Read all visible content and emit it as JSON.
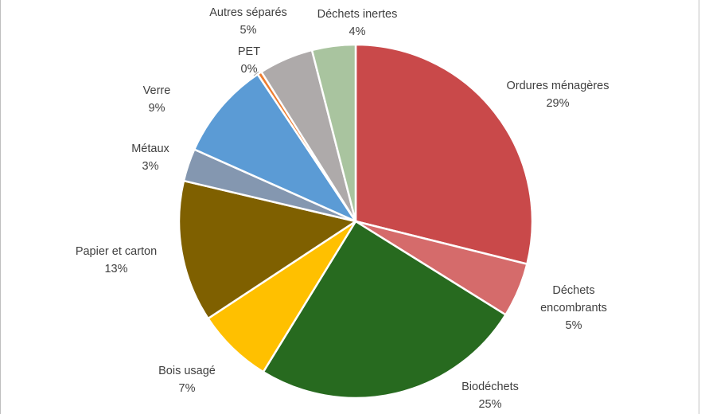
{
  "chart_data": {
    "type": "pie",
    "title": "",
    "slices": [
      {
        "label": "Ordures ménagères",
        "value": 29,
        "value_label": "29%",
        "color": "#c9494a"
      },
      {
        "label": "Déchets encombrants",
        "label_lines": [
          "Déchets",
          "encombrants"
        ],
        "value": 5,
        "value_label": "5%",
        "color": "#d56b6b"
      },
      {
        "label": "Biodéchets",
        "value": 25,
        "value_label": "25%",
        "color": "#276a1f"
      },
      {
        "label": "Bois usagé",
        "value": 7,
        "value_label": "7%",
        "color": "#ffc000"
      },
      {
        "label": "Papier et carton",
        "value": 13,
        "value_label": "13%",
        "color": "#7f6000"
      },
      {
        "label": "Métaux",
        "value": 3,
        "value_label": "3%",
        "color": "#8497b0"
      },
      {
        "label": "Verre",
        "value": 9,
        "value_label": "9%",
        "color": "#5b9bd5"
      },
      {
        "label": "PET",
        "value": 0.4,
        "value_label": "0%",
        "color": "#ed7d31"
      },
      {
        "label": "Autres séparés",
        "value": 5,
        "value_label": "5%",
        "color": "#aeaaaa"
      },
      {
        "label": "Déchets inertes",
        "value": 4,
        "value_label": "4%",
        "color": "#a9c49f"
      }
    ]
  }
}
